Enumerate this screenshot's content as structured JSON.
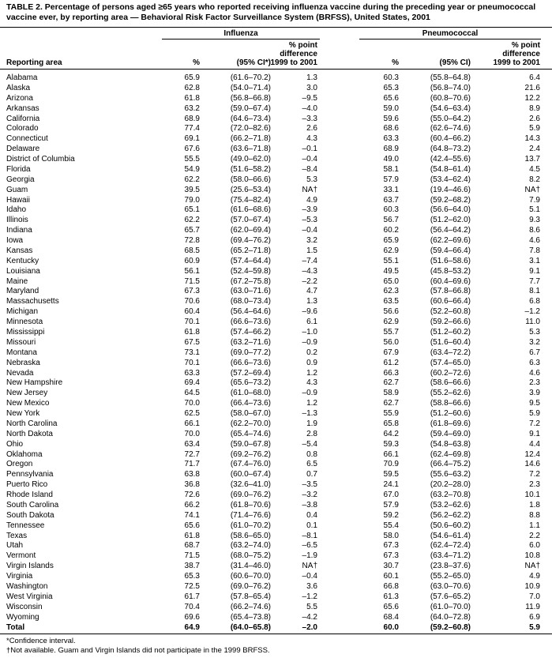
{
  "title": "TABLE 2. Percentage of persons aged ≥65 years who reported receiving influenza vaccine during the preceding year or pneumococcal vaccine ever, by reporting area — Behavioral Risk Factor Surveillance System (BRFSS), United States, 2001",
  "column_groups": [
    "Influenza",
    "Pneumococcal"
  ],
  "columns": [
    "Reporting area",
    "%",
    "(95% CI*)",
    [
      "% point",
      "difference",
      "1999 to 2001"
    ],
    "%",
    "(95% CI)",
    [
      "% point",
      "difference",
      "1999 to 2001"
    ]
  ],
  "rows": [
    [
      "Alabama",
      "65.9",
      "(61.6–70.2)",
      "1.3",
      "60.3",
      "(55.8–64.8)",
      "6.4"
    ],
    [
      "Alaska",
      "62.8",
      "(54.0–71.4)",
      "3.0",
      "65.3",
      "(56.8–74.0)",
      "21.6"
    ],
    [
      "Arizona",
      "61.8",
      "(56.8–66.8)",
      "–9.5",
      "65.6",
      "(60.8–70.6)",
      "12.2"
    ],
    [
      "Arkansas",
      "63.2",
      "(59.0–67.4)",
      "–4.0",
      "59.0",
      "(54.6–63.4)",
      "8.9"
    ],
    [
      "California",
      "68.9",
      "(64.6–73.4)",
      "–3.3",
      "59.6",
      "(55.0–64.2)",
      "2.6"
    ],
    [
      "Colorado",
      "77.4",
      "(72.0–82.6)",
      "2.6",
      "68.6",
      "(62.6–74.6)",
      "5.9"
    ],
    [
      "Connecticut",
      "69.1",
      "(66.2–71.8)",
      "4.3",
      "63.3",
      "(60.4–66.2)",
      "14.3"
    ],
    [
      "Delaware",
      "67.6",
      "(63.6–71.8)",
      "–0.1",
      "68.9",
      "(64.8–73.2)",
      "2.4"
    ],
    [
      "District of Columbia",
      "55.5",
      "(49.0–62.0)",
      "–0.4",
      "49.0",
      "(42.4–55.6)",
      "13.7"
    ],
    [
      "Florida",
      "54.9",
      "(51.6–58.2)",
      "–8.4",
      "58.1",
      "(54.8–61.4)",
      "4.5"
    ],
    [
      "Georgia",
      "62.2",
      "(58.0–66.6)",
      "5.3",
      "57.9",
      "(53.4–62.4)",
      "8.2"
    ],
    [
      "Guam",
      "39.5",
      "(25.6–53.4)",
      "NA†",
      "33.1",
      "(19.4–46.6)",
      "NA†"
    ],
    [
      "Hawaii",
      "79.0",
      "(75.4–82.4)",
      "4.9",
      "63.7",
      "(59.2–68.2)",
      "7.9"
    ],
    [
      "Idaho",
      "65.1",
      "(61.6–68.6)",
      "–3.9",
      "60.3",
      "(56.6–64.0)",
      "5.1"
    ],
    [
      "Illinois",
      "62.2",
      "(57.0–67.4)",
      "–5.3",
      "56.7",
      "(51.2–62.0)",
      "9.3"
    ],
    [
      "Indiana",
      "65.7",
      "(62.0–69.4)",
      "–0.4",
      "60.2",
      "(56.4–64.2)",
      "8.6"
    ],
    [
      "Iowa",
      "72.8",
      "(69.4–76.2)",
      "3.2",
      "65.9",
      "(62.2–69.6)",
      "4.6"
    ],
    [
      "Kansas",
      "68.5",
      "(65.2–71.8)",
      "1.5",
      "62.9",
      "(59.4–66.4)",
      "7.8"
    ],
    [
      "Kentucky",
      "60.9",
      "(57.4–64.4)",
      "–7.4",
      "55.1",
      "(51.6–58.6)",
      "3.1"
    ],
    [
      "Louisiana",
      "56.1",
      "(52.4–59.8)",
      "–4.3",
      "49.5",
      "(45.8–53.2)",
      "9.1"
    ],
    [
      "Maine",
      "71.5",
      "(67.2–75.8)",
      "–2.2",
      "65.0",
      "(60.4–69.6)",
      "7.7"
    ],
    [
      "Maryland",
      "67.3",
      "(63.0–71.6)",
      "4.7",
      "62.3",
      "(57.8–66.8)",
      "8.1"
    ],
    [
      "Massachusetts",
      "70.6",
      "(68.0–73.4)",
      "1.3",
      "63.5",
      "(60.6–66.4)",
      "6.8"
    ],
    [
      "Michigan",
      "60.4",
      "(56.4–64.6)",
      "–9.6",
      "56.6",
      "(52.2–60.8)",
      "–1.2"
    ],
    [
      "Minnesota",
      "70.1",
      "(66.6–73.6)",
      "6.1",
      "62.9",
      "(59.2–66.6)",
      "11.0"
    ],
    [
      "Mississippi",
      "61.8",
      "(57.4–66.2)",
      "–1.0",
      "55.7",
      "(51.2–60.2)",
      "5.3"
    ],
    [
      "Missouri",
      "67.5",
      "(63.2–71.6)",
      "–0.9",
      "56.0",
      "(51.6–60.4)",
      "3.2"
    ],
    [
      "Montana",
      "73.1",
      "(69.0–77.2)",
      "0.2",
      "67.9",
      "(63.4–72.2)",
      "6.7"
    ],
    [
      "Nebraska",
      "70.1",
      "(66.6–73.6)",
      "0.9",
      "61.2",
      "(57.4–65.0)",
      "6.3"
    ],
    [
      "Nevada",
      "63.3",
      "(57.2–69.4)",
      "1.2",
      "66.3",
      "(60.2–72.6)",
      "4.6"
    ],
    [
      "New Hampshire",
      "69.4",
      "(65.6–73.2)",
      "4.3",
      "62.7",
      "(58.6–66.6)",
      "2.3"
    ],
    [
      "New Jersey",
      "64.5",
      "(61.0–68.0)",
      "–0.9",
      "58.9",
      "(55.2–62.6)",
      "3.9"
    ],
    [
      "New Mexico",
      "70.0",
      "(66.4–73.6)",
      "1.2",
      "62.7",
      "(58.8–66.6)",
      "9.5"
    ],
    [
      "New York",
      "62.5",
      "(58.0–67.0)",
      "–1.3",
      "55.9",
      "(51.2–60.6)",
      "5.9"
    ],
    [
      "North Carolina",
      "66.1",
      "(62.2–70.0)",
      "1.9",
      "65.8",
      "(61.8–69.6)",
      "7.2"
    ],
    [
      "North Dakota",
      "70.0",
      "(65.4–74.6)",
      "2.8",
      "64.2",
      "(59.4–69.0)",
      "9.1"
    ],
    [
      "Ohio",
      "63.4",
      "(59.0–67.8)",
      "–5.4",
      "59.3",
      "(54.8–63.8)",
      "4.4"
    ],
    [
      "Oklahoma",
      "72.7",
      "(69.2–76.2)",
      "0.8",
      "66.1",
      "(62.4–69.8)",
      "12.4"
    ],
    [
      "Oregon",
      "71.7",
      "(67.4–76.0)",
      "6.5",
      "70.9",
      "(66.4–75.2)",
      "14.6"
    ],
    [
      "Pennsylvania",
      "63.8",
      "(60.0–67.4)",
      "0.7",
      "59.5",
      "(55.6–63.2)",
      "7.2"
    ],
    [
      "Puerto Rico",
      "36.8",
      "(32.6–41.0)",
      "–3.5",
      "24.1",
      "(20.2–28.0)",
      "2.3"
    ],
    [
      "Rhode Island",
      "72.6",
      "(69.0–76.2)",
      "–3.2",
      "67.0",
      "(63.2–70.8)",
      "10.1"
    ],
    [
      "South Carolina",
      "66.2",
      "(61.8–70.6)",
      "–3.8",
      "57.9",
      "(53.2–62.6)",
      "1.8"
    ],
    [
      "South Dakota",
      "74.1",
      "(71.4–76.6)",
      "0.4",
      "59.2",
      "(56.2–62.2)",
      "8.8"
    ],
    [
      "Tennessee",
      "65.6",
      "(61.0–70.2)",
      "0.1",
      "55.4",
      "(50.6–60.2)",
      "1.1"
    ],
    [
      "Texas",
      "61.8",
      "(58.6–65.0)",
      "–8.1",
      "58.0",
      "(54.6–61.4)",
      "2.2"
    ],
    [
      "Utah",
      "68.7",
      "(63.2–74.0)",
      "–6.5",
      "67.3",
      "(62.4–72.4)",
      "6.0"
    ],
    [
      "Vermont",
      "71.5",
      "(68.0–75.2)",
      "–1.9",
      "67.3",
      "(63.4–71.2)",
      "10.8"
    ],
    [
      "Virgin Islands",
      "38.7",
      "(31.4–46.0)",
      "NA†",
      "30.7",
      "(23.8–37.6)",
      "NA†"
    ],
    [
      "Virginia",
      "65.3",
      "(60.6–70.0)",
      "–0.4",
      "60.1",
      "(55.2–65.0)",
      "4.9"
    ],
    [
      "Washington",
      "72.5",
      "(69.0–76.2)",
      "3.6",
      "66.8",
      "(63.0–70.6)",
      "10.9"
    ],
    [
      "West Virginia",
      "61.7",
      "(57.8–65.4)",
      "–1.2",
      "61.3",
      "(57.6–65.2)",
      "7.0"
    ],
    [
      "Wisconsin",
      "70.4",
      "(66.2–74.6)",
      "5.5",
      "65.6",
      "(61.0–70.0)",
      "11.9"
    ],
    [
      "Wyoming",
      "69.6",
      "(65.4–73.8)",
      "–4.2",
      "68.4",
      "(64.0–72.8)",
      "6.9"
    ]
  ],
  "total": [
    "Total",
    "64.9",
    "(64.0–65.8)",
    "–2.0",
    "60.0",
    "(59.2–60.8)",
    "5.9"
  ],
  "footnotes": [
    "*Confidence interval.",
    "†Not available. Guam and Virgin Islands did not participate in the 1999 BRFSS."
  ]
}
